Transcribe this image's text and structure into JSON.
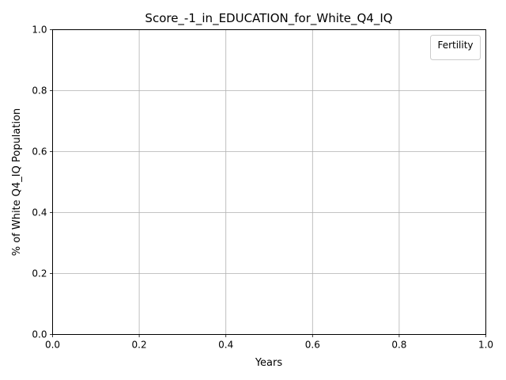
{
  "chart_data": {
    "type": "line",
    "title": "Score_-1_in_EDUCATION_for_White_Q4_IQ",
    "xlabel": "Years",
    "ylabel": "% of White Q4_IQ Population",
    "xlim": [
      0.0,
      1.0
    ],
    "ylim": [
      0.0,
      1.0
    ],
    "xticks": [
      "0.0",
      "0.2",
      "0.4",
      "0.6",
      "0.8",
      "1.0"
    ],
    "yticks": [
      "0.0",
      "0.2",
      "0.4",
      "0.6",
      "0.8",
      "1.0"
    ],
    "grid": true,
    "legend": {
      "title": "Fertility",
      "position": "top-right",
      "entries": []
    },
    "series": []
  }
}
